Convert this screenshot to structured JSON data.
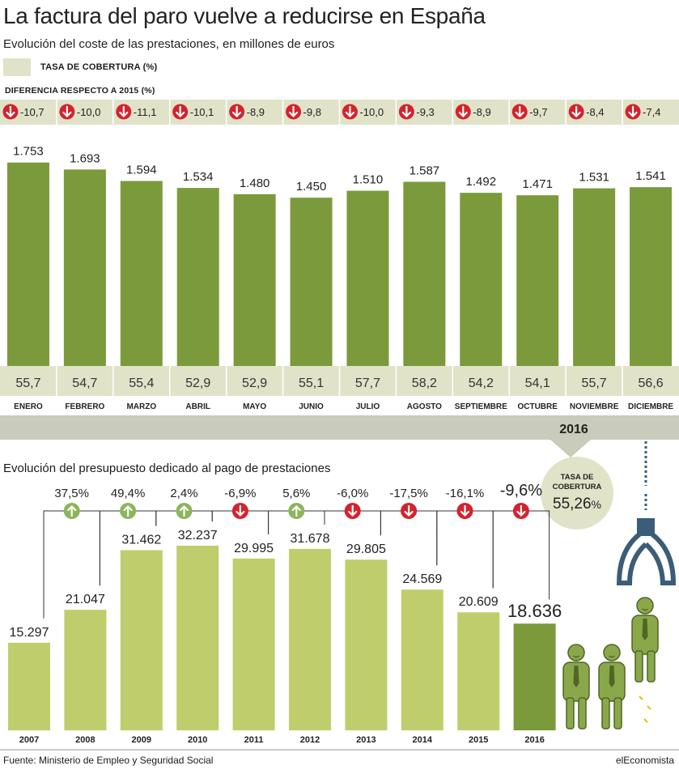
{
  "title": "La factura del paro vuelve a reducirse en España",
  "subtitle": "Evolución del coste de las prestaciones, en millones de euros",
  "legend_label": "TASA DE COBERTURA (%)",
  "diff_title": "DIFERENCIA RESPECTO A 2015 (%)",
  "year_label": "2016",
  "section2_title": "Evolución del presupuesto dedicado al pago de prestaciones",
  "callout": {
    "line1": "TASA DE",
    "line2": "COBERTURA",
    "value": "55,26",
    "unit": "%"
  },
  "source": "Fuente: Ministerio de Empleo y Seguridad Social",
  "brand": "elEconomista",
  "colors": {
    "monthly_bar": "#7b9a3b",
    "yearly_bar": "#c0cd6c",
    "highlight_bar": "#7b9a3b",
    "band": "#e1e3c9",
    "down": "#d4232e",
    "up": "#8db55a"
  },
  "chart_data": [
    {
      "type": "bar",
      "title": "Evolución del coste de las prestaciones, en millones de euros",
      "categories": [
        "ENERO",
        "FEBRERO",
        "MARZO",
        "ABRIL",
        "MAYO",
        "JUNIO",
        "JULIO",
        "AGOSTO",
        "SEPTIEMBRE",
        "OCTUBRE",
        "NOVIEMBRE",
        "DICIEMBRE"
      ],
      "values": [
        1753,
        1693,
        1594,
        1534,
        1480,
        1450,
        1510,
        1587,
        1492,
        1471,
        1531,
        1541
      ],
      "value_labels": [
        "1.753",
        "1.693",
        "1.594",
        "1.534",
        "1.480",
        "1.450",
        "1.510",
        "1.587",
        "1.492",
        "1.471",
        "1.531",
        "1.541"
      ],
      "diff_vs_2015": [
        "-10,7",
        "-10,0",
        "-11,1",
        "-10,1",
        "-8,9",
        "-9,8",
        "-10,0",
        "-9,3",
        "-8,9",
        "-9,7",
        "-8,4",
        "-7,4"
      ],
      "coverage_rate": [
        "55,7",
        "54,7",
        "55,4",
        "52,9",
        "52,9",
        "55,1",
        "57,7",
        "58,2",
        "54,2",
        "54,1",
        "55,7",
        "56,6"
      ],
      "ylim": [
        0,
        1800
      ],
      "grid": false
    },
    {
      "type": "bar",
      "title": "Evolución del presupuesto dedicado al pago de prestaciones",
      "categories": [
        "2007",
        "2008",
        "2009",
        "2010",
        "2011",
        "2012",
        "2013",
        "2014",
        "2015",
        "2016"
      ],
      "values": [
        15297,
        21047,
        31462,
        32237,
        29995,
        31678,
        29805,
        24569,
        20609,
        18636
      ],
      "value_labels": [
        "15.297",
        "21.047",
        "31.462",
        "32.237",
        "29.995",
        "31.678",
        "29.805",
        "24.569",
        "20.609",
        "18.636"
      ],
      "changes": [
        {
          "label": "37,5%",
          "dir": "up"
        },
        {
          "label": "49,4%",
          "dir": "up"
        },
        {
          "label": "2,4%",
          "dir": "up"
        },
        {
          "label": "-6,9%",
          "dir": "down"
        },
        {
          "label": "5,6%",
          "dir": "up"
        },
        {
          "label": "-6,0%",
          "dir": "down"
        },
        {
          "label": "-17,5%",
          "dir": "down"
        },
        {
          "label": "-16,1%",
          "dir": "down"
        },
        {
          "label": "-9,6%",
          "dir": "down"
        }
      ],
      "ylim": [
        0,
        35000
      ],
      "grid": false
    }
  ]
}
